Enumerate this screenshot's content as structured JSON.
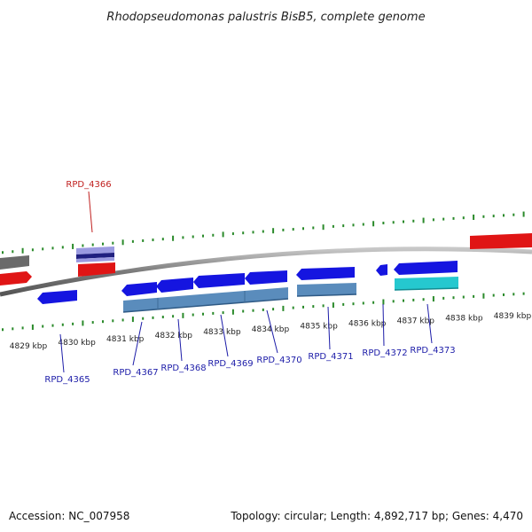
{
  "title": "Rhodopseudomonas palustris BisB5, complete genome",
  "footer": {
    "accession": "Accession: NC_007958",
    "summary": "Topology: circular; Length: 4,892,717 bp; Genes: 4,470"
  },
  "colors": {
    "background": "#ffffff",
    "backbone": "#888888",
    "tick": "#2a8a2a",
    "label_forward": "#c0201f",
    "label_reverse": "#1c1ca8",
    "cds_blue": "#1515e0",
    "cds_red": "#e01515",
    "cds_grey": "#6a6a6a",
    "cds_cyan": "#25c8cf",
    "cds_steel": "#5a8cbc",
    "cds_navy": "#202080",
    "cds_lavender": "#9a9ae0"
  },
  "axis": {
    "unit": "kbp",
    "kbp_ticks": [
      4829,
      4830,
      4831,
      4832,
      4833,
      4834,
      4835,
      4836,
      4837,
      4838,
      4839
    ],
    "tick_labels": [
      "4829 kbp",
      "4830 kbp",
      "4831 kbp",
      "4832 kbp",
      "4833 kbp",
      "4834 kbp",
      "4835 kbp",
      "4836 kbp",
      "4837 kbp",
      "4838 kbp",
      "4839 kbp"
    ]
  },
  "gene_labels": [
    {
      "id": "RPD_4366",
      "strand": "forward"
    },
    {
      "id": "RPD_4365",
      "strand": "reverse"
    },
    {
      "id": "RPD_4367",
      "strand": "reverse"
    },
    {
      "id": "RPD_4368",
      "strand": "reverse"
    },
    {
      "id": "RPD_4369",
      "strand": "reverse"
    },
    {
      "id": "RPD_4370",
      "strand": "reverse"
    },
    {
      "id": "RPD_4371",
      "strand": "reverse"
    },
    {
      "id": "RPD_4372",
      "strand": "reverse"
    },
    {
      "id": "RPD_4373",
      "strand": "reverse"
    }
  ]
}
